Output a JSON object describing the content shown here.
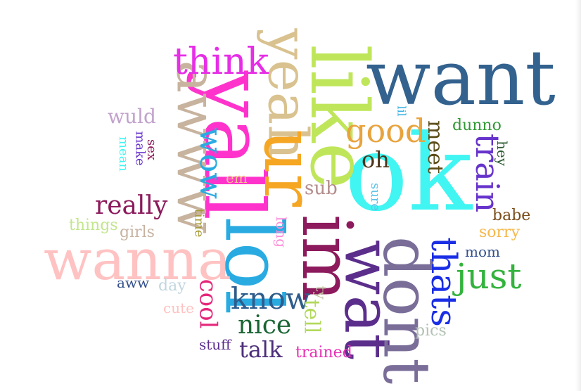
{
  "words": [
    {
      "text": "want",
      "color": "#33628f",
      "rotate": 0
    },
    {
      "text": "ok",
      "color": "#40f5f2",
      "rotate": 0
    },
    {
      "text": "like",
      "color": "#bfe65a",
      "rotate": 90
    },
    {
      "text": "yall",
      "color": "#ff33cc",
      "rotate": 90
    },
    {
      "text": "yeah",
      "color": "#d9c28f",
      "rotate": 90
    },
    {
      "text": "awww",
      "color": "#c7b39e",
      "rotate": 90
    },
    {
      "text": "ur",
      "color": "#f5a623",
      "rotate": 90
    },
    {
      "text": "lol",
      "color": "#29abe2",
      "rotate": 90
    },
    {
      "text": "im",
      "color": "#8c1a5c",
      "rotate": 90
    },
    {
      "text": "wat",
      "color": "#5c2e8c",
      "rotate": 90
    },
    {
      "text": "dont",
      "color": "#7a6e99",
      "rotate": 90
    },
    {
      "text": "wanna",
      "color": "#ffc2c2",
      "rotate": 0
    },
    {
      "text": "think",
      "color": "#e62ee6",
      "rotate": 0
    },
    {
      "text": "good",
      "color": "#e8a33d",
      "rotate": 0
    },
    {
      "text": "just",
      "color": "#33b33d",
      "rotate": 0
    },
    {
      "text": "know",
      "color": "#2e5c8c",
      "rotate": 0
    },
    {
      "text": "thats",
      "color": "#1a2ee6",
      "rotate": 90
    },
    {
      "text": "train",
      "color": "#6633cc",
      "rotate": 90
    },
    {
      "text": "wow",
      "color": "#29abe2",
      "rotate": 90
    },
    {
      "text": "really",
      "color": "#8c1a5c",
      "rotate": 0
    },
    {
      "text": "nice",
      "color": "#1a6633",
      "rotate": 0
    },
    {
      "text": "cool",
      "color": "#e6267a",
      "rotate": 90
    },
    {
      "text": "talk",
      "color": "#4d2e7a",
      "rotate": 0
    },
    {
      "text": "meet",
      "color": "#5c4d1a",
      "rotate": 90
    },
    {
      "text": "oh",
      "color": "#4d3319",
      "rotate": 0
    },
    {
      "text": "tell",
      "color": "#b3d95c",
      "rotate": 90
    },
    {
      "text": "sub",
      "color": "#b38c8c",
      "rotate": 0
    },
    {
      "text": "wuld",
      "color": "#c2a3cc",
      "rotate": 0
    },
    {
      "text": "dunno",
      "color": "#2e9933",
      "rotate": 0
    },
    {
      "text": "hey",
      "color": "#2e5c33",
      "rotate": 90
    },
    {
      "text": "babe",
      "color": "#7a4d1a",
      "rotate": 0
    },
    {
      "text": "sorry",
      "color": "#f5b84d",
      "rotate": 0
    },
    {
      "text": "mom",
      "color": "#33508c",
      "rotate": 0
    },
    {
      "text": "pics",
      "color": "#b3c2b3",
      "rotate": 0
    },
    {
      "text": "trained",
      "color": "#e62eb3",
      "rotate": 0
    },
    {
      "text": "stuff",
      "color": "#5c2e8c",
      "rotate": 0
    },
    {
      "text": "things",
      "color": "#c2e68c",
      "rotate": 0
    },
    {
      "text": "girls",
      "color": "#c7b3a3",
      "rotate": 0
    },
    {
      "text": "aww",
      "color": "#33508c",
      "rotate": 0
    },
    {
      "text": "day",
      "color": "#c2d6e0",
      "rotate": 0
    },
    {
      "text": "cute",
      "color": "#ffc2c2",
      "rotate": 0
    },
    {
      "text": "em",
      "color": "#f5c28c",
      "rotate": 0
    },
    {
      "text": "time",
      "color": "#a39933",
      "rotate": 90
    },
    {
      "text": "long",
      "color": "#ff8cd9",
      "rotate": 90
    },
    {
      "text": "ty",
      "color": "#c2c2a3",
      "rotate": 90
    },
    {
      "text": "sure",
      "color": "#5cc2e6",
      "rotate": 90
    },
    {
      "text": "lil",
      "color": "#29abe2",
      "rotate": 90
    },
    {
      "text": "sex",
      "color": "#8c1a5c",
      "rotate": 90
    },
    {
      "text": "make",
      "color": "#6633cc",
      "rotate": 90
    },
    {
      "text": "mean",
      "color": "#40f5f2",
      "rotate": 90
    }
  ]
}
